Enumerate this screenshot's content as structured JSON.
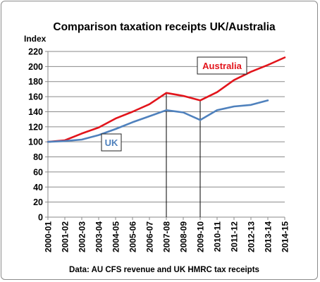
{
  "chart_data": {
    "type": "line",
    "title": "Comparison taxation receipts UK/Australia",
    "ylabel": "Index",
    "xlabel": "",
    "source": "Data: AU CFS revenue and UK HMRC tax receipts",
    "ylim": [
      0,
      220
    ],
    "yticks": [
      "0",
      "20",
      "40",
      "60",
      "80",
      "100",
      "120",
      "140",
      "160",
      "180",
      "200",
      "220"
    ],
    "categories": [
      "2000-01",
      "2001-02",
      "2002-03",
      "2003-04",
      "2004-05",
      "2005-06",
      "2006-07",
      "2007-08",
      "2008-09",
      "2009-10",
      "2010-11",
      "2011-12",
      "2012-13",
      "2013-14",
      "2014-15"
    ],
    "grid": "horizontal",
    "vertical_markers": [
      "2007-08",
      "2009-10"
    ],
    "series": [
      {
        "name": "Australia",
        "color": "#e2141b",
        "values": [
          100,
          102,
          111,
          119,
          131,
          140,
          150,
          165,
          161,
          155,
          166,
          182,
          193,
          202,
          212
        ]
      },
      {
        "name": "UK",
        "color": "#4f81bd",
        "values": [
          100,
          101,
          103,
          109,
          117,
          126,
          134,
          142,
          139,
          129,
          142,
          147,
          149,
          155,
          null
        ]
      }
    ]
  }
}
